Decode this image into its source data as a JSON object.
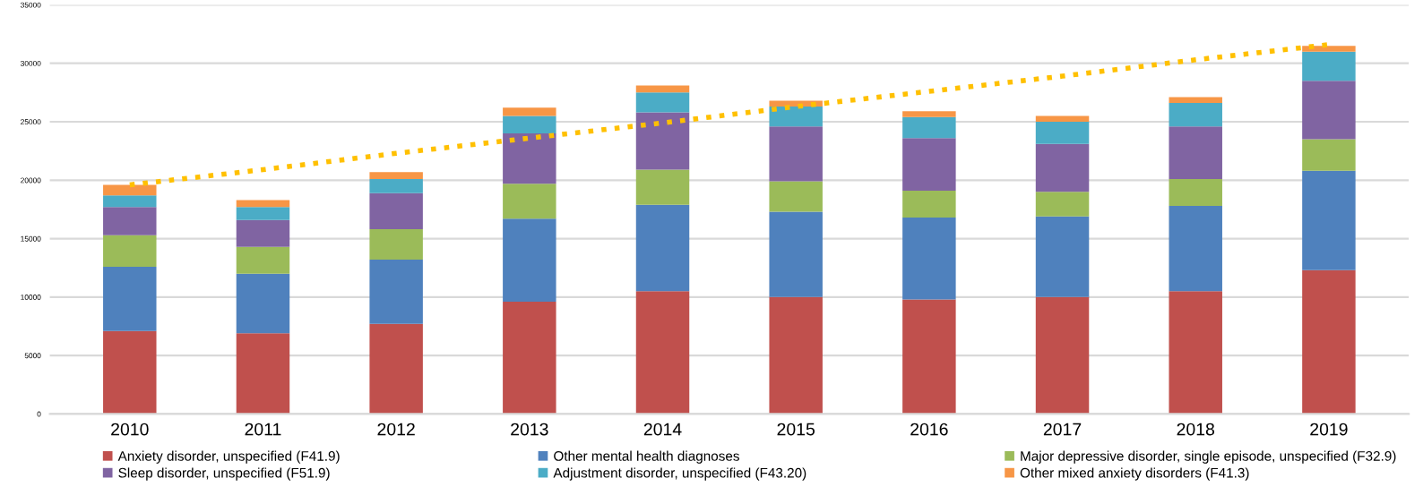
{
  "chart_data": {
    "type": "bar",
    "stacked": true,
    "categories": [
      "2010",
      "2011",
      "2012",
      "2013",
      "2014",
      "2015",
      "2016",
      "2017",
      "2018",
      "2019"
    ],
    "ylim": [
      0,
      35000
    ],
    "yticks": [
      0,
      5000,
      10000,
      15000,
      20000,
      25000,
      30000,
      35000
    ],
    "grid": "y",
    "legend": "bottom",
    "series": [
      {
        "name": "Anxiety disorder, unspecified (F41.9)",
        "color": "#c0504d",
        "values": [
          7100,
          6900,
          7700,
          9600,
          10500,
          10000,
          9800,
          10000,
          10500,
          12300
        ]
      },
      {
        "name": "Other mental health diagnoses",
        "color": "#4f81bd",
        "values": [
          5500,
          5100,
          5500,
          7100,
          7400,
          7300,
          7000,
          6900,
          7300,
          8500
        ]
      },
      {
        "name": "Major depressive disorder, single episode, unspecified (F32.9)",
        "color": "#9bbb59",
        "values": [
          2700,
          2300,
          2600,
          3000,
          3000,
          2600,
          2300,
          2100,
          2300,
          2700
        ]
      },
      {
        "name": "Sleep disorder, unspecified (F51.9)",
        "color": "#8064a2",
        "values": [
          2400,
          2300,
          3100,
          4300,
          4900,
          4700,
          4500,
          4100,
          4500,
          5000
        ]
      },
      {
        "name": "Adjustment disorder, unspecified (F43.20)",
        "color": "#4bacc6",
        "values": [
          1000,
          1100,
          1200,
          1500,
          1700,
          1700,
          1800,
          1900,
          2000,
          2500
        ]
      },
      {
        "name": "Other mixed anxiety disorders (F41.3)",
        "color": "#f79646",
        "values": [
          900,
          600,
          600,
          700,
          600,
          500,
          500,
          500,
          500,
          500
        ]
      },
      {
        "type": "line",
        "color": "#ffc000",
        "line_style": "dotted",
        "values": [
          19600,
          20900,
          22300,
          23600,
          24900,
          26300,
          27600,
          28900,
          30300,
          31600
        ]
      }
    ]
  }
}
